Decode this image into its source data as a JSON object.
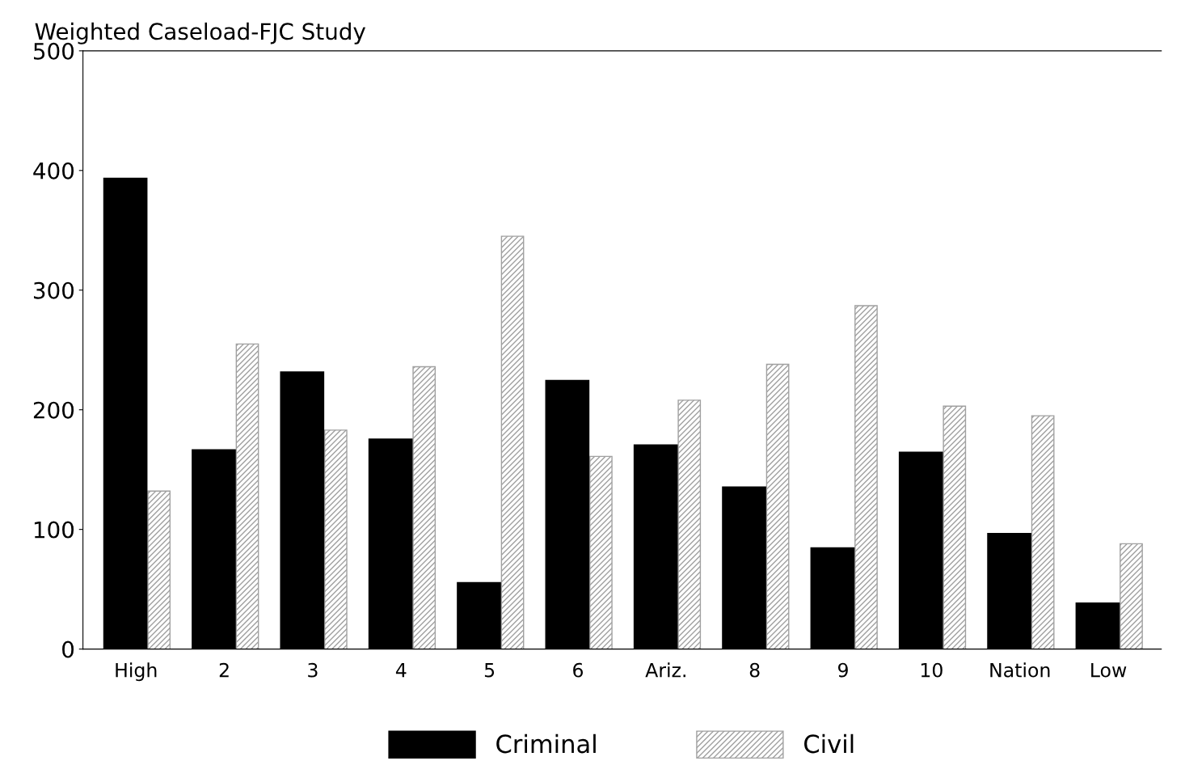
{
  "chart_data": {
    "type": "bar",
    "title": "Weighted Caseload-FJC Study",
    "categories": [
      "High",
      "2",
      "3",
      "4",
      "5",
      "6",
      "Ariz.",
      "8",
      "9",
      "10",
      "Nation",
      "Low"
    ],
    "series": [
      {
        "name": "Criminal",
        "color": "#000000",
        "values": [
          394,
          167,
          232,
          176,
          56,
          225,
          171,
          136,
          85,
          165,
          97,
          39
        ]
      },
      {
        "name": "Civil",
        "color": "#a0a0a0",
        "values": [
          132,
          255,
          183,
          236,
          345,
          161,
          208,
          238,
          287,
          203,
          195,
          88
        ]
      }
    ],
    "ylim": [
      0,
      500
    ],
    "yticks": [
      0,
      100,
      200,
      300,
      400,
      500
    ],
    "grid": false,
    "legend": "bottom"
  }
}
